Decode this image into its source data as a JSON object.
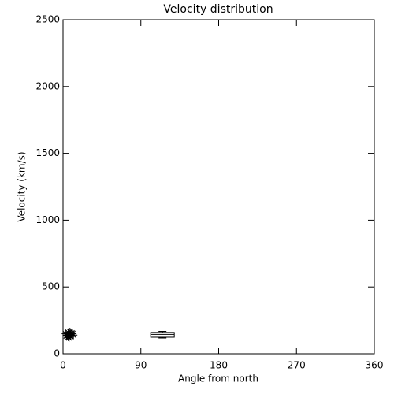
{
  "chart_data": {
    "type": "scatter",
    "title": "Velocity distribution",
    "x_label": "Angle from north",
    "y_label": "Velocity (km/s)",
    "xlim": [
      0,
      360
    ],
    "xticks": [
      0,
      90,
      180,
      270,
      360
    ],
    "ylim": [
      0,
      2500
    ],
    "yticks": [
      0,
      500,
      1000,
      1500,
      2000,
      2500
    ],
    "color": "#000000",
    "x": [
      3,
      5,
      6,
      7,
      8,
      9,
      10,
      11,
      4,
      8,
      12,
      6
    ],
    "values": [
      150,
      140,
      160,
      120,
      145,
      130,
      155,
      150,
      135,
      165,
      140,
      125
    ],
    "box": {
      "x": 115,
      "low": 118,
      "q1": 124,
      "median": 145,
      "q3": 160,
      "high": 168
    }
  }
}
